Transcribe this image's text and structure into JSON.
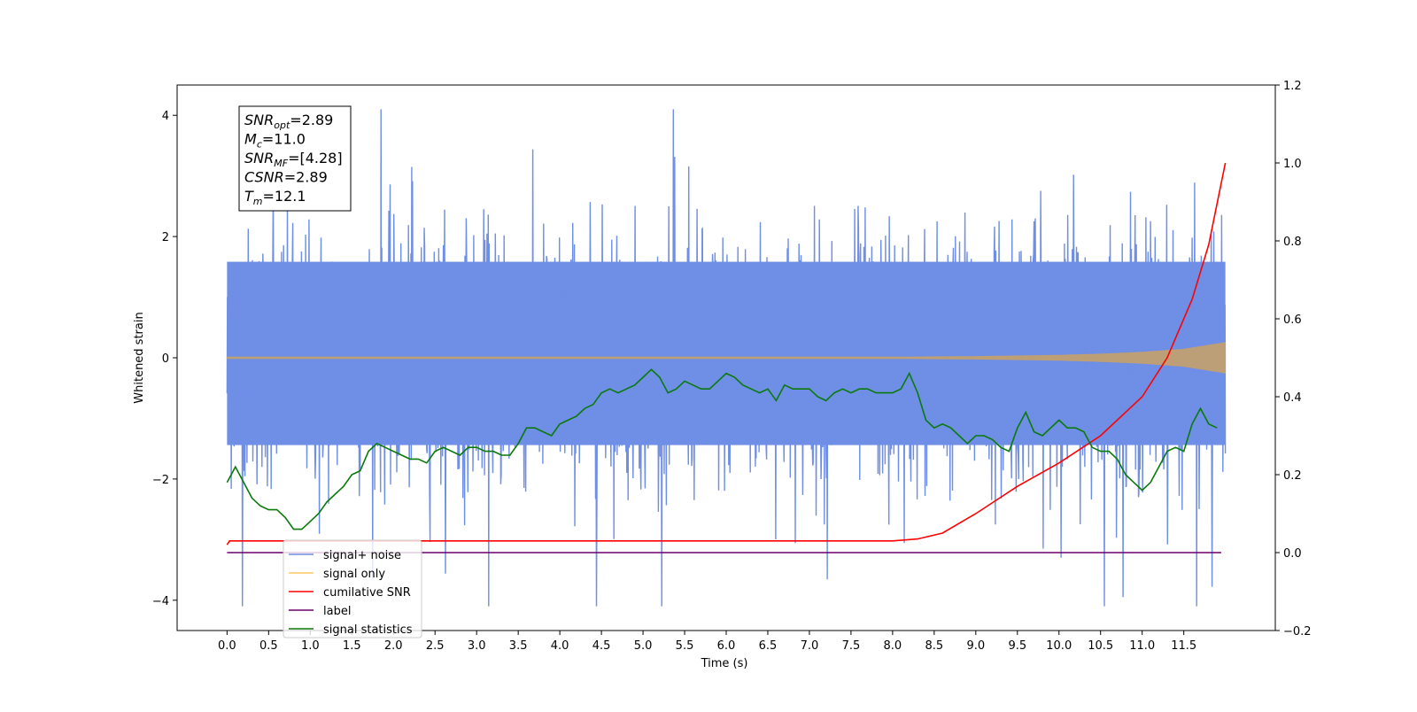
{
  "chart_data": {
    "type": "line",
    "xlabel": "Time (s)",
    "ylabel_left": "Whitened strain",
    "ylabel_right": "",
    "xlim": [
      -0.6,
      12.6
    ],
    "ylim_left": [
      -4.5,
      4.5
    ],
    "ylim_right": [
      -0.2,
      1.2
    ],
    "grid": false,
    "legend_position": "lower-left",
    "x_ticks": [
      "0.0",
      "0.5",
      "1.0",
      "1.5",
      "2.0",
      "2.5",
      "3.0",
      "3.5",
      "4.0",
      "4.5",
      "5.0",
      "5.5",
      "6.0",
      "6.5",
      "7.0",
      "7.5",
      "8.0",
      "8.5",
      "9.0",
      "9.5",
      "10.0",
      "10.5",
      "11.0",
      "11.5"
    ],
    "y_ticks_left": [
      "4",
      "2",
      "0",
      "−2",
      "−4"
    ],
    "y_ticks_right": [
      "1.2",
      "1.0",
      "0.8",
      "0.6",
      "0.4",
      "0.2",
      "0.0",
      "−0.2"
    ],
    "annotation": {
      "lines": [
        {
          "base": "SNR",
          "sub": "opt",
          "value": "=2.89"
        },
        {
          "base": "M",
          "sub": "c",
          "value": "=11.0"
        },
        {
          "base": "SNR",
          "sub": "MF",
          "value": "=[4.28]"
        },
        {
          "base": "CSNR",
          "sub": "",
          "value": "=2.89"
        },
        {
          "base": "T",
          "sub": "m",
          "value": "=12.1"
        }
      ]
    },
    "legend": [
      {
        "label": "signal+ noise",
        "color": "#6f8ee6"
      },
      {
        "label": "signal only",
        "color": "#ffc864"
      },
      {
        "label": "cumilative SNR",
        "color": "#ff0000"
      },
      {
        "label": "label",
        "color": "#6a006a"
      },
      {
        "label": "signal statistics",
        "color": "#0a7a0a"
      }
    ],
    "series": [
      {
        "name": "signal+ noise",
        "axis": "left",
        "color": "#6f8ee6",
        "envelope": {
          "x_start": 0.0,
          "x_end": 12.0,
          "typical_high": 2.2,
          "typical_low": -2.0,
          "peak_high": 4.1,
          "peak_low": -4.1
        }
      },
      {
        "name": "signal only",
        "axis": "left",
        "color": "#c0a070",
        "amplitude": {
          "x": [
            0.0,
            8.0,
            9.0,
            10.0,
            10.5,
            11.0,
            11.5,
            12.0
          ],
          "y": [
            0.0,
            0.01,
            0.02,
            0.04,
            0.06,
            0.09,
            0.14,
            0.25
          ]
        }
      },
      {
        "name": "cumilative SNR",
        "axis": "right",
        "color": "#ff0000",
        "x": [
          0.0,
          0.03,
          8.0,
          8.3,
          8.6,
          9.0,
          9.5,
          10.0,
          10.5,
          11.0,
          11.3,
          11.6,
          11.8,
          12.0
        ],
        "y": [
          0.02,
          0.03,
          0.03,
          0.035,
          0.05,
          0.1,
          0.17,
          0.23,
          0.3,
          0.4,
          0.5,
          0.65,
          0.79,
          1.0
        ]
      },
      {
        "name": "label",
        "axis": "right",
        "color": "#6a006a",
        "x": [
          0.0,
          11.95
        ],
        "y": [
          0.0,
          0.0
        ]
      },
      {
        "name": "signal statistics",
        "axis": "right",
        "color": "#0a7a0a",
        "x": [
          0.0,
          0.1,
          0.2,
          0.3,
          0.4,
          0.5,
          0.6,
          0.7,
          0.8,
          0.9,
          1.0,
          1.1,
          1.2,
          1.3,
          1.4,
          1.5,
          1.6,
          1.7,
          1.8,
          1.9,
          2.0,
          2.1,
          2.2,
          2.3,
          2.4,
          2.5,
          2.6,
          2.7,
          2.8,
          2.9,
          3.0,
          3.1,
          3.2,
          3.3,
          3.4,
          3.5,
          3.6,
          3.7,
          3.8,
          3.9,
          4.0,
          4.1,
          4.2,
          4.3,
          4.4,
          4.5,
          4.6,
          4.7,
          4.8,
          4.9,
          5.0,
          5.1,
          5.2,
          5.3,
          5.4,
          5.5,
          5.6,
          5.7,
          5.8,
          5.9,
          6.0,
          6.1,
          6.2,
          6.3,
          6.4,
          6.5,
          6.6,
          6.7,
          6.8,
          6.9,
          7.0,
          7.1,
          7.2,
          7.3,
          7.4,
          7.5,
          7.6,
          7.7,
          7.8,
          7.9,
          8.0,
          8.1,
          8.2,
          8.3,
          8.4,
          8.5,
          8.6,
          8.7,
          8.8,
          8.9,
          9.0,
          9.1,
          9.2,
          9.3,
          9.4,
          9.5,
          9.6,
          9.7,
          9.8,
          9.9,
          10.0,
          10.1,
          10.2,
          10.3,
          10.4,
          10.5,
          10.6,
          10.7,
          10.8,
          10.9,
          11.0,
          11.1,
          11.2,
          11.3,
          11.4,
          11.5,
          11.6,
          11.7,
          11.8,
          11.9
        ],
        "y": [
          0.18,
          0.22,
          0.18,
          0.14,
          0.12,
          0.11,
          0.11,
          0.09,
          0.06,
          0.06,
          0.08,
          0.1,
          0.13,
          0.15,
          0.17,
          0.2,
          0.21,
          0.26,
          0.28,
          0.27,
          0.26,
          0.25,
          0.24,
          0.24,
          0.23,
          0.26,
          0.27,
          0.26,
          0.25,
          0.27,
          0.27,
          0.26,
          0.26,
          0.25,
          0.25,
          0.28,
          0.32,
          0.32,
          0.31,
          0.3,
          0.33,
          0.34,
          0.35,
          0.37,
          0.38,
          0.41,
          0.42,
          0.41,
          0.42,
          0.43,
          0.45,
          0.47,
          0.45,
          0.41,
          0.42,
          0.44,
          0.43,
          0.42,
          0.42,
          0.44,
          0.46,
          0.45,
          0.43,
          0.42,
          0.41,
          0.42,
          0.39,
          0.43,
          0.42,
          0.42,
          0.42,
          0.4,
          0.39,
          0.41,
          0.42,
          0.41,
          0.42,
          0.42,
          0.41,
          0.41,
          0.41,
          0.42,
          0.46,
          0.41,
          0.34,
          0.32,
          0.33,
          0.32,
          0.3,
          0.28,
          0.3,
          0.3,
          0.29,
          0.27,
          0.26,
          0.32,
          0.36,
          0.31,
          0.3,
          0.32,
          0.34,
          0.32,
          0.32,
          0.31,
          0.27,
          0.26,
          0.26,
          0.24,
          0.2,
          0.18,
          0.16,
          0.18,
          0.22,
          0.26,
          0.27,
          0.26,
          0.33,
          0.37,
          0.33,
          0.32
        ]
      }
    ]
  }
}
